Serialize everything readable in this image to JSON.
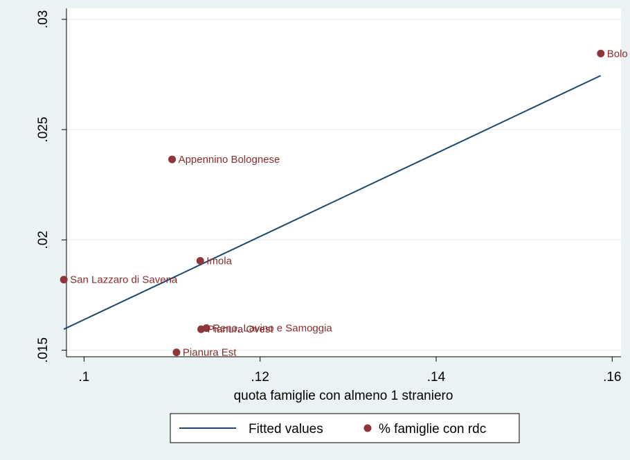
{
  "chart_data": {
    "type": "scatter",
    "title": "",
    "xlabel": "quota famiglie con almeno 1 straniero",
    "ylabel": "",
    "xlim": [
      0.098,
      0.161
    ],
    "ylim": [
      0.0147,
      0.0305
    ],
    "x_ticks": [
      0.1,
      0.12,
      0.14,
      0.16
    ],
    "x_tick_labels": [
      ".1",
      ".12",
      ".14",
      ".16"
    ],
    "y_ticks": [
      0.015,
      0.02,
      0.025,
      0.03
    ],
    "y_tick_labels": [
      ".015",
      ".02",
      ".025",
      ".03"
    ],
    "grid": "horizontal",
    "legend_position": "bottom",
    "series": [
      {
        "name": "Fitted values",
        "kind": "line",
        "color": "#1a476f",
        "points": [
          {
            "x": 0.0977,
            "y": 0.01595
          },
          {
            "x": 0.1587,
            "y": 0.02745
          }
        ]
      },
      {
        "name": "% famiglie con rdc",
        "kind": "scatter",
        "color": "#90353b",
        "points": [
          {
            "x": 0.1587,
            "y": 0.02845,
            "label": "Bolo"
          },
          {
            "x": 0.11,
            "y": 0.02365,
            "label": "Appennino Bolognese"
          },
          {
            "x": 0.1132,
            "y": 0.01905,
            "label": "Imola"
          },
          {
            "x": 0.0977,
            "y": 0.0182,
            "label": "San Lazzaro di Savena"
          },
          {
            "x": 0.1139,
            "y": 0.016,
            "label": "Reno, Lavino e Samoggia"
          },
          {
            "x": 0.1133,
            "y": 0.01595,
            "label": "Pianura Ovest"
          },
          {
            "x": 0.1105,
            "y": 0.0149,
            "label": "Pianura Est"
          }
        ]
      }
    ]
  }
}
